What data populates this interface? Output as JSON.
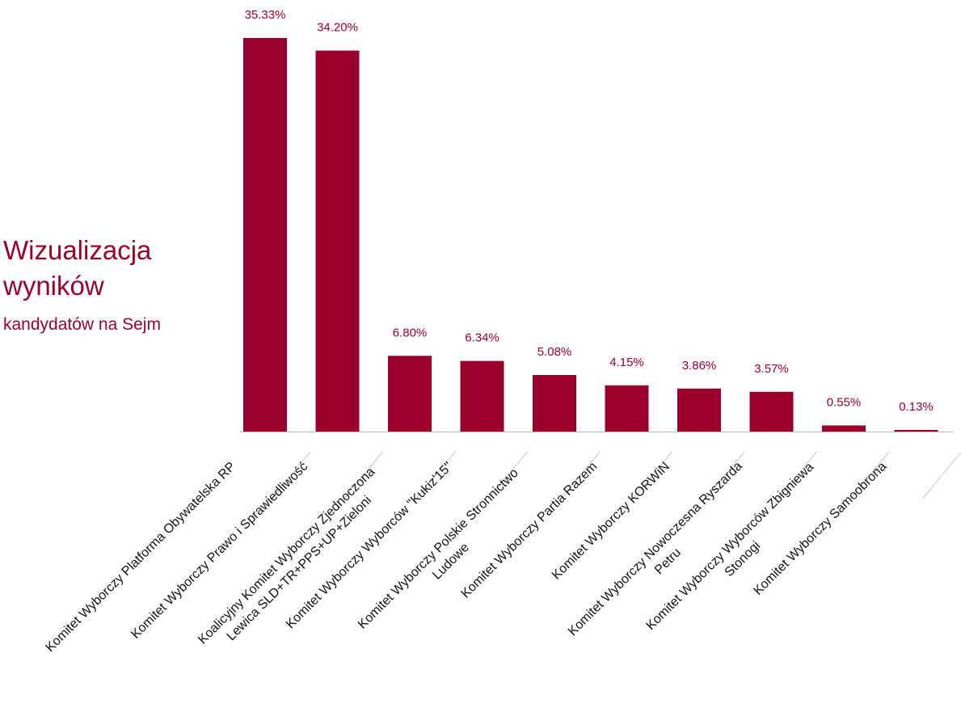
{
  "title": "Wizualizacja wyników",
  "subtitle": "kandydatów na Sejm",
  "colors": {
    "accent": "#9b002d",
    "axis": "#bbbbbb",
    "text": "#111111"
  },
  "chart_data": {
    "type": "bar",
    "categories": [
      [
        "Komitet Wyborczy Platforma Obywatelska RP"
      ],
      [
        "Komitet Wyborczy Prawo i Sprawiedliwość"
      ],
      [
        "Koalicyjny Komitet Wyborczy Zjednoczona",
        "Lewica SLD+TR+PPS+UP+Zieloni"
      ],
      [
        "Komitet Wyborczy Wyborców \"Kukiz'15\""
      ],
      [
        "Komitet Wyborczy Polskie Stronnictwo",
        "Ludowe"
      ],
      [
        "Komitet Wyborczy Partia Razem"
      ],
      [
        "Komitet Wyborczy KORWiN"
      ],
      [
        "Komitet Wyborczy Nowoczesna Ryszarda",
        "Petru"
      ],
      [
        "Komitet Wyborczy Wyborców Zbigniewa",
        "Stonogi"
      ],
      [
        "Komitet Wyborczy Samoobrona"
      ]
    ],
    "values": [
      35.33,
      34.2,
      6.8,
      6.34,
      5.08,
      4.15,
      3.86,
      3.57,
      0.55,
      0.13
    ],
    "value_labels": [
      "35.33%",
      "34.20%",
      "6.80%",
      "6.34%",
      "5.08%",
      "4.15%",
      "3.86%",
      "3.57%",
      "0.55%",
      "0.13%"
    ],
    "ylim": [
      0,
      35.33
    ],
    "grid": false,
    "legend": "none"
  }
}
